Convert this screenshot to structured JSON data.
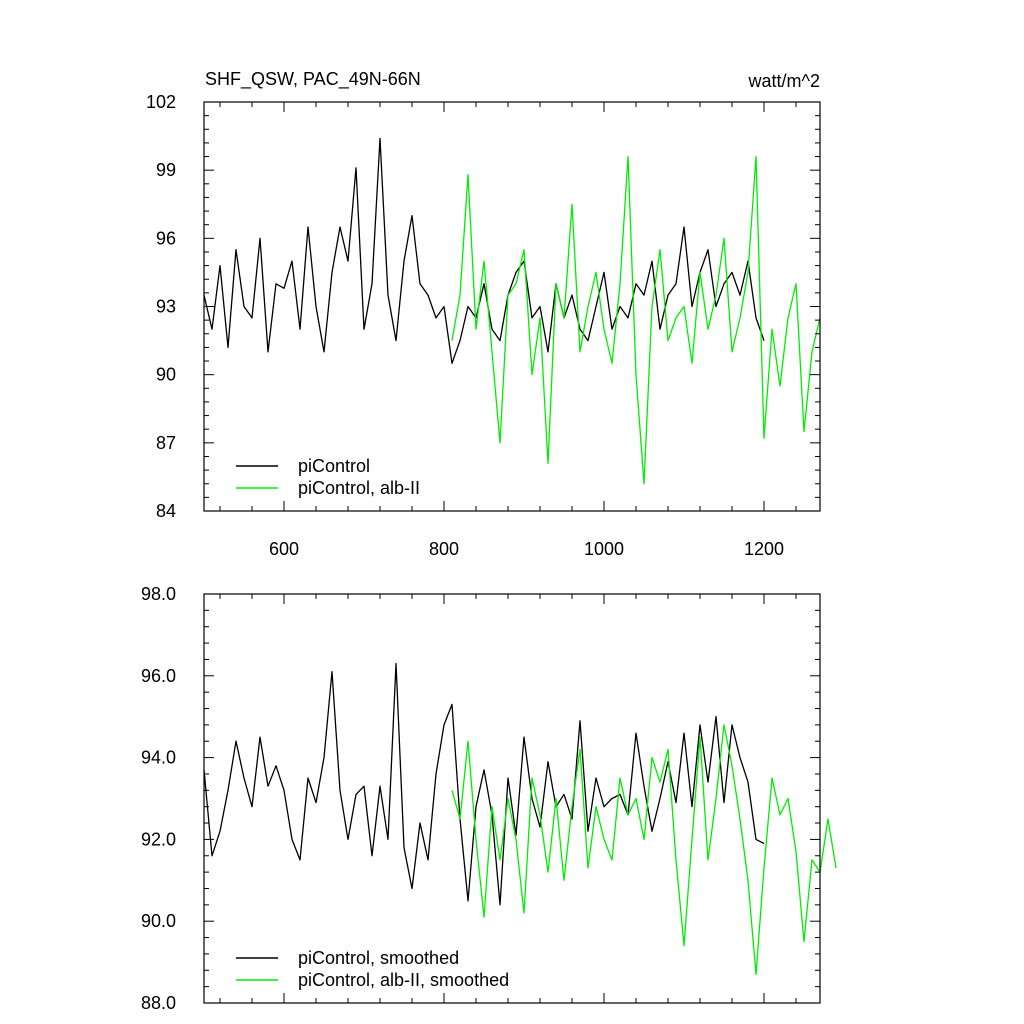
{
  "colors": {
    "piControl": "#000000",
    "alb_ii": "#00ee00",
    "axis": "#000000",
    "background": "#ffffff"
  },
  "chart_data": [
    {
      "type": "line",
      "title": "SHF_QSW, PAC_49N-66N",
      "units": "watt/m^2",
      "xlim": [
        500,
        1270
      ],
      "ylim": [
        84,
        102
      ],
      "xticks": [
        600,
        800,
        1000,
        1200
      ],
      "xtick_labels": [
        "600",
        "800",
        "1000",
        "1200"
      ],
      "yticks": [
        84,
        87,
        90,
        93,
        96,
        99,
        102
      ],
      "ytick_labels": [
        "84",
        "87",
        "90",
        "93",
        "96",
        "99",
        "102"
      ],
      "legend_position": "bottom-left",
      "series": [
        {
          "name": "piControl",
          "color": "#000000",
          "x_start": 500,
          "x_step": 10,
          "values": [
            93.5,
            92.0,
            94.8,
            91.2,
            95.5,
            93.0,
            92.5,
            96.0,
            91.0,
            94.0,
            93.8,
            95.0,
            92.0,
            96.5,
            93.0,
            91.0,
            94.5,
            96.5,
            95.0,
            99.1,
            92.0,
            94.0,
            100.4,
            93.5,
            91.5,
            95.0,
            97.0,
            94.0,
            93.5,
            92.5,
            93.0,
            90.5,
            91.5,
            93.0,
            92.5,
            94.0,
            92.0,
            91.5,
            93.5,
            94.5,
            95.0,
            92.5,
            93.0,
            91.0,
            94.0,
            92.5,
            93.5,
            92.0,
            91.5,
            93.0,
            94.5,
            92.0,
            93.0,
            92.5,
            94.0,
            93.5,
            95.0,
            92.0,
            93.5,
            94.0,
            96.5,
            93.0,
            94.5,
            95.5,
            93.0,
            94.0,
            94.5,
            93.5,
            95.0,
            92.5,
            91.5
          ]
        },
        {
          "name": "piControl, alb-II",
          "color": "#00ee00",
          "x_start": 810,
          "x_step": 10,
          "values": [
            91.5,
            93.5,
            98.8,
            92.0,
            95.0,
            91.0,
            87.0,
            93.5,
            94.0,
            95.5,
            90.0,
            92.5,
            86.1,
            94.0,
            92.5,
            97.5,
            91.0,
            93.0,
            94.5,
            92.0,
            90.5,
            94.0,
            99.6,
            90.0,
            85.2,
            93.0,
            95.5,
            91.5,
            92.5,
            93.0,
            90.5,
            94.5,
            92.0,
            93.5,
            96.0,
            91.0,
            92.5,
            94.5,
            99.6,
            87.2,
            92.0,
            89.5,
            92.5,
            94.0,
            87.5,
            91.0,
            92.5
          ]
        }
      ]
    },
    {
      "type": "line",
      "xlim": [
        500,
        1270
      ],
      "ylim": [
        88.0,
        98.0
      ],
      "xticks": [
        600,
        800,
        1000,
        1200
      ],
      "yticks": [
        88.0,
        90.0,
        92.0,
        94.0,
        96.0,
        98.0
      ],
      "ytick_labels": [
        "88.0",
        "90.0",
        "92.0",
        "94.0",
        "96.0",
        "98.0"
      ],
      "legend_position": "bottom-left",
      "series": [
        {
          "name": "piControl, smoothed",
          "color": "#000000",
          "x_start": 500,
          "x_step": 10,
          "values": [
            93.7,
            91.6,
            92.2,
            93.2,
            94.4,
            93.5,
            92.8,
            94.5,
            93.3,
            93.8,
            93.2,
            92.0,
            91.5,
            93.5,
            92.9,
            94.0,
            96.1,
            93.2,
            92.0,
            93.1,
            93.3,
            91.6,
            93.3,
            92.0,
            96.3,
            91.8,
            90.8,
            92.4,
            91.5,
            93.6,
            94.8,
            95.3,
            92.5,
            90.5,
            92.8,
            93.7,
            92.6,
            90.4,
            93.5,
            92.1,
            94.5,
            93.0,
            92.3,
            93.9,
            92.8,
            93.1,
            92.5,
            94.9,
            92.2,
            93.5,
            92.8,
            93.0,
            93.1,
            92.6,
            94.6,
            93.3,
            92.2,
            93.0,
            93.9,
            92.9,
            94.6,
            92.8,
            94.8,
            93.4,
            95.0,
            92.9,
            94.8,
            94.0,
            93.4,
            92.0,
            91.9
          ]
        },
        {
          "name": "piControl, alb-II, smoothed",
          "color": "#00ee00",
          "x_start": 810,
          "x_step": 10,
          "values": [
            93.2,
            92.5,
            94.4,
            92.0,
            90.1,
            92.8,
            91.5,
            93.0,
            92.0,
            90.2,
            93.5,
            92.6,
            91.2,
            93.0,
            91.0,
            92.8,
            94.2,
            91.3,
            92.8,
            92.0,
            91.5,
            93.5,
            92.6,
            93.0,
            92.0,
            94.0,
            93.4,
            94.2,
            91.5,
            89.4,
            92.0,
            94.5,
            91.5,
            93.0,
            94.8,
            93.8,
            92.5,
            91.0,
            88.7,
            91.3,
            93.5,
            92.6,
            93.0,
            91.7,
            89.5,
            91.5,
            91.2,
            92.5,
            91.3
          ]
        }
      ]
    }
  ]
}
